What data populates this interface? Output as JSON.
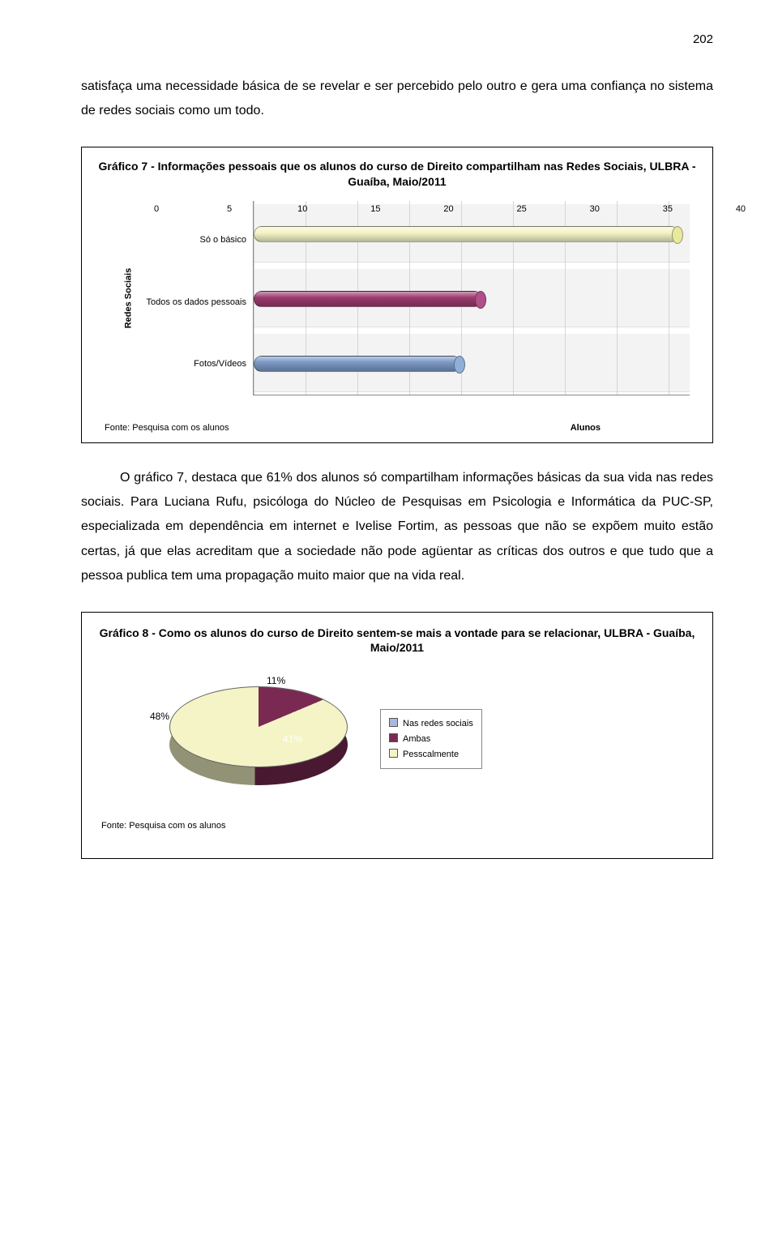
{
  "page_number": "202",
  "para1": "satisfaça uma necessidade básica de se revelar e ser percebido pelo outro e gera uma confiança no sistema de redes sociais como um todo.",
  "para2": "O gráfico 7, destaca que 61% dos alunos só compartilham informações básicas da sua vida nas redes sociais. Para Luciana Rufu, psicóloga do Núcleo de Pesquisas em Psicologia e Informática da PUC-SP, especializada em dependência em internet e Ivelise Fortim, as pessoas que não se expõem muito estão certas, já que elas acreditam que a sociedade não pode agüentar as críticas dos outros e que tudo que a pessoa publica tem uma propagação muito maior que na vida real.",
  "bar_chart": {
    "title": "Gráfico 7 - Informações pessoais que os alunos do curso de Direito compartilham nas Redes Sociais, ULBRA - Guaíba, Maio/2011",
    "y_axis_title": "Redes Sociais",
    "x_axis_label": "Alunos",
    "source": "Fonte: Pesquisa com os alunos",
    "categories": [
      "Só o básico",
      "Todos os dados pessoais",
      "Fotos/Vídeos"
    ],
    "values": [
      41,
      22,
      20
    ],
    "bar_colors": [
      "#f4f4c6",
      "#9c3a6e",
      "#7a98c4"
    ],
    "cap_colors": [
      "#e8e8a0",
      "#b05088",
      "#90aed8"
    ],
    "xticks": [
      0,
      5,
      10,
      15,
      20,
      25,
      30,
      35,
      40
    ],
    "xmax": 42,
    "plot_bg": "#d0d0d0",
    "grid_color": "#d8d8d8",
    "label_fontsize": 11
  },
  "pie_chart": {
    "title": "Gráfico 8 - Como os alunos do curso de Direito sentem-se mais a vontade para se relacionar, ULBRA - Guaíba, Maio/2011",
    "slices": [
      {
        "label": "Nas redes sociais",
        "pct": 11,
        "color": "#a8b8e0"
      },
      {
        "label": "Ambas",
        "pct": 41,
        "color": "#7a2a52"
      },
      {
        "label": "Pesscalmente",
        "pct": 48,
        "color": "#f4f4c6"
      }
    ],
    "pct_labels": [
      "11%",
      "41%",
      "48%"
    ],
    "source": "Fonte: Pesquisa com os alunos",
    "legend_border": "#888888"
  }
}
